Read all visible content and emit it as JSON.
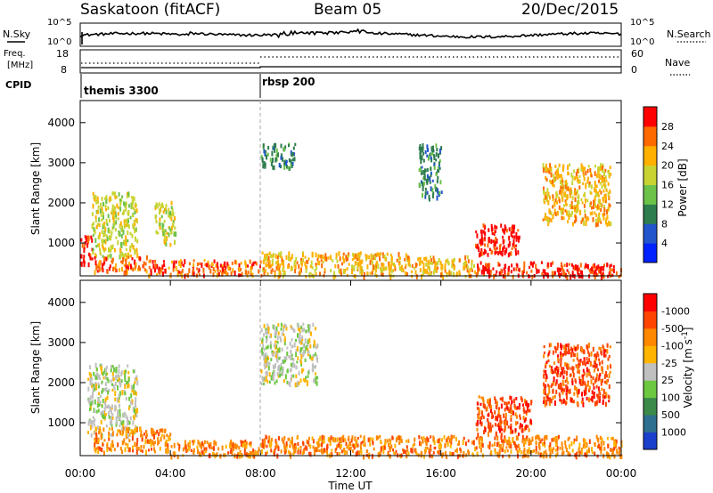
{
  "header": {
    "station": "Saskatoon (fitACF)",
    "beam": "Beam 05",
    "date": "20/Dec/2015"
  },
  "nsky_panel": {
    "left_label": "N.Sky",
    "left_ticks": [
      "10^5",
      "10^0"
    ],
    "right_label": "N.Search",
    "right_ticks": [
      "10^5",
      "10^0"
    ]
  },
  "freq_panel": {
    "left_label_line1": "Freq.",
    "left_label_line2": "[MHz]",
    "left_ticks": [
      "18",
      "8"
    ],
    "right_label": "Nave",
    "right_ticks": [
      "60",
      "0"
    ]
  },
  "cpid": {
    "label": "CPID",
    "segments": [
      {
        "name": "themis 3300",
        "start_hour": 0
      },
      {
        "name": "rbsp 200",
        "start_hour": 8
      }
    ]
  },
  "chart_data": [
    {
      "type": "heatmap",
      "panel": "power",
      "ylabel": "Slant Range [km]",
      "ylim": [
        180,
        4550
      ],
      "yticks": [
        1000,
        2000,
        3000,
        4000
      ],
      "xlim": [
        0,
        24
      ],
      "colorbar": {
        "label": "Power [dB]",
        "tick_labels": [
          "4",
          "8",
          "12",
          "16",
          "20",
          "24",
          "28"
        ],
        "colors": [
          "#0022ff",
          "#2255cc",
          "#2e7d4e",
          "#6dc24a",
          "#c9d433",
          "#ffb000",
          "#ff6a00",
          "#ff0000"
        ]
      },
      "scatter_regions": [
        {
          "t0": 0.0,
          "t1": 0.5,
          "r0": 500,
          "r1": 1200,
          "level": 28
        },
        {
          "t0": 0.5,
          "t1": 2.5,
          "r0": 700,
          "r1": 2300,
          "level": 16
        },
        {
          "t0": 0.6,
          "t1": 3.0,
          "r0": 300,
          "r1": 700,
          "level": 24
        },
        {
          "t0": 3.0,
          "t1": 8.0,
          "r0": 200,
          "r1": 600,
          "level": 26
        },
        {
          "t0": 3.3,
          "t1": 4.2,
          "r0": 1000,
          "r1": 2100,
          "level": 18
        },
        {
          "t0": 8.0,
          "t1": 9.5,
          "r0": 2900,
          "r1": 3500,
          "level": 8
        },
        {
          "t0": 8.0,
          "t1": 14.5,
          "r0": 200,
          "r1": 800,
          "level": 22
        },
        {
          "t0": 14.5,
          "t1": 17.5,
          "r0": 200,
          "r1": 700,
          "level": 20
        },
        {
          "t0": 15.0,
          "t1": 16.0,
          "r0": 2100,
          "r1": 3500,
          "level": 8
        },
        {
          "t0": 17.5,
          "t1": 19.5,
          "r0": 750,
          "r1": 1500,
          "level": 28
        },
        {
          "t0": 17.5,
          "t1": 24.0,
          "r0": 200,
          "r1": 550,
          "level": 28
        },
        {
          "t0": 20.5,
          "t1": 23.5,
          "r0": 1500,
          "r1": 3000,
          "level": 20
        }
      ]
    },
    {
      "type": "heatmap",
      "panel": "velocity",
      "ylabel": "Slant Range [km]",
      "ylim": [
        180,
        4550
      ],
      "yticks": [
        1000,
        2000,
        3000,
        4000
      ],
      "xlim": [
        0,
        24
      ],
      "xticks": [
        "00:00",
        "04:00",
        "08:00",
        "12:00",
        "16:00",
        "20:00",
        "00:00"
      ],
      "xlabel": "Time UT",
      "colorbar": {
        "label": "Velocity [m s^-1]",
        "tick_labels": [
          "1000",
          "500",
          "100",
          "25",
          "-25",
          "-100",
          "-500",
          "-1000"
        ],
        "colors": [
          "#1a3fcc",
          "#2e6e8e",
          "#3c8a4a",
          "#6cc840",
          "#c0c0c0",
          "#ffb400",
          "#ff8800",
          "#ff4400",
          "#ff0000"
        ]
      },
      "scatter_regions": [
        {
          "t0": 0.3,
          "t1": 2.5,
          "r0": 700,
          "r1": 2500,
          "level": 25
        },
        {
          "t0": 0.6,
          "t1": 4.0,
          "r0": 300,
          "r1": 900,
          "level": -100
        },
        {
          "t0": 4.0,
          "t1": 8.0,
          "r0": 200,
          "r1": 600,
          "level": -100
        },
        {
          "t0": 8.0,
          "t1": 10.5,
          "r0": 2000,
          "r1": 3500,
          "level": 25
        },
        {
          "t0": 8.0,
          "t1": 17.5,
          "r0": 200,
          "r1": 700,
          "level": -100
        },
        {
          "t0": 17.5,
          "t1": 20.0,
          "r0": 750,
          "r1": 1700,
          "level": -500
        },
        {
          "t0": 17.5,
          "t1": 24.0,
          "r0": 200,
          "r1": 700,
          "level": -100
        },
        {
          "t0": 20.5,
          "t1": 23.5,
          "r0": 1500,
          "r1": 3000,
          "level": -500
        }
      ]
    }
  ]
}
